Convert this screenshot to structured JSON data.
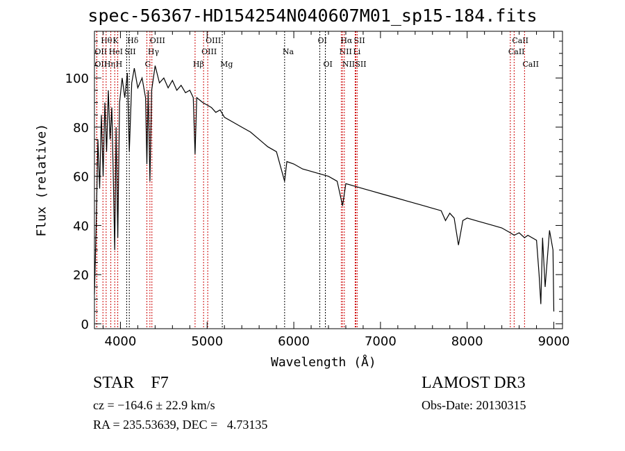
{
  "chart_data": {
    "type": "line",
    "title": "spec-56367-HD154254N040607M01_sp15-184.fits",
    "xlabel": "Wavelength (Å)",
    "ylabel": "Flux (relative)",
    "xlim": [
      3700,
      9100
    ],
    "ylim": [
      -2,
      119
    ],
    "xticks": [
      4000,
      5000,
      6000,
      7000,
      8000,
      9000
    ],
    "yticks": [
      0,
      20,
      40,
      60,
      80,
      100
    ],
    "grid": false,
    "series": [
      {
        "name": "spectrum",
        "color": "#000000",
        "points": [
          [
            3700,
            12
          ],
          [
            3720,
            40
          ],
          [
            3740,
            75
          ],
          [
            3760,
            55
          ],
          [
            3780,
            85
          ],
          [
            3800,
            60
          ],
          [
            3820,
            90
          ],
          [
            3840,
            70
          ],
          [
            3860,
            95
          ],
          [
            3880,
            75
          ],
          [
            3900,
            88
          ],
          [
            3920,
            55
          ],
          [
            3934,
            30
          ],
          [
            3950,
            80
          ],
          [
            3969,
            35
          ],
          [
            3990,
            90
          ],
          [
            4020,
            100
          ],
          [
            4050,
            92
          ],
          [
            4080,
            102
          ],
          [
            4102,
            70
          ],
          [
            4130,
            98
          ],
          [
            4160,
            104
          ],
          [
            4200,
            96
          ],
          [
            4250,
            100
          ],
          [
            4290,
            92
          ],
          [
            4305,
            65
          ],
          [
            4320,
            95
          ],
          [
            4340,
            58
          ],
          [
            4360,
            95
          ],
          [
            4400,
            105
          ],
          [
            4450,
            98
          ],
          [
            4500,
            100
          ],
          [
            4550,
            96
          ],
          [
            4600,
            99
          ],
          [
            4650,
            95
          ],
          [
            4700,
            97
          ],
          [
            4750,
            94
          ],
          [
            4800,
            95
          ],
          [
            4840,
            92
          ],
          [
            4861,
            69
          ],
          [
            4880,
            92
          ],
          [
            4950,
            90
          ],
          [
            5000,
            89
          ],
          [
            5050,
            88
          ],
          [
            5100,
            86
          ],
          [
            5150,
            87
          ],
          [
            5200,
            84
          ],
          [
            5300,
            82
          ],
          [
            5400,
            80
          ],
          [
            5500,
            78
          ],
          [
            5600,
            75
          ],
          [
            5700,
            72
          ],
          [
            5800,
            70
          ],
          [
            5894,
            58
          ],
          [
            5920,
            66
          ],
          [
            6000,
            65
          ],
          [
            6100,
            63
          ],
          [
            6200,
            62
          ],
          [
            6300,
            61
          ],
          [
            6400,
            60
          ],
          [
            6500,
            58
          ],
          [
            6563,
            48
          ],
          [
            6600,
            57
          ],
          [
            6700,
            56
          ],
          [
            6800,
            55
          ],
          [
            6900,
            54
          ],
          [
            7000,
            53
          ],
          [
            7100,
            52
          ],
          [
            7200,
            51
          ],
          [
            7300,
            50
          ],
          [
            7400,
            49
          ],
          [
            7500,
            48
          ],
          [
            7600,
            47
          ],
          [
            7700,
            46
          ],
          [
            7750,
            42
          ],
          [
            7800,
            45
          ],
          [
            7850,
            43
          ],
          [
            7900,
            32
          ],
          [
            7950,
            42
          ],
          [
            8000,
            43
          ],
          [
            8100,
            42
          ],
          [
            8200,
            41
          ],
          [
            8300,
            40
          ],
          [
            8400,
            39
          ],
          [
            8498,
            37
          ],
          [
            8542,
            36
          ],
          [
            8600,
            37
          ],
          [
            8662,
            35
          ],
          [
            8700,
            36
          ],
          [
            8800,
            34
          ],
          [
            8830,
            20
          ],
          [
            8850,
            8
          ],
          [
            8870,
            35
          ],
          [
            8900,
            15
          ],
          [
            8950,
            38
          ],
          [
            8990,
            30
          ],
          [
            9000,
            5
          ]
        ]
      }
    ],
    "line_markers": [
      {
        "label": "OII",
        "wavelength": 3727,
        "row": 2,
        "color": "#cc0000"
      },
      {
        "label": "Hθ",
        "wavelength": 3798,
        "row": 0,
        "color": "#cc0000"
      },
      {
        "label": "OII",
        "wavelength": 3727,
        "row": 1,
        "color": "#cc0000"
      },
      {
        "label": "Hη",
        "wavelength": 3835,
        "row": 2,
        "color": "#cc0000"
      },
      {
        "label": "HeI",
        "wavelength": 3889,
        "row": 1,
        "color": "#cc0000"
      },
      {
        "label": "K",
        "wavelength": 3934,
        "row": 0,
        "color": "#cc0000"
      },
      {
        "label": "H",
        "wavelength": 3969,
        "row": 2,
        "color": "#cc0000"
      },
      {
        "label": "SII",
        "wavelength": 4072,
        "row": 1,
        "color": "#000000"
      },
      {
        "label": "Hδ",
        "wavelength": 4102,
        "row": 0,
        "color": "#000000"
      },
      {
        "label": "G",
        "wavelength": 4305,
        "row": 2,
        "color": "#cc0000"
      },
      {
        "label": "Hγ",
        "wavelength": 4340,
        "row": 1,
        "color": "#cc0000"
      },
      {
        "label": "OIII",
        "wavelength": 4363,
        "row": 0,
        "color": "#cc0000"
      },
      {
        "label": "Hβ",
        "wavelength": 4861,
        "row": 2,
        "color": "#cc0000"
      },
      {
        "label": "OIII",
        "wavelength": 4959,
        "row": 1,
        "color": "#cc0000"
      },
      {
        "label": "OIII",
        "wavelength": 5007,
        "row": 0,
        "color": "#cc0000"
      },
      {
        "label": "Mg",
        "wavelength": 5175,
        "row": 2,
        "color": "#000000"
      },
      {
        "label": "Na",
        "wavelength": 5894,
        "row": 1,
        "color": "#000000"
      },
      {
        "label": "OI",
        "wavelength": 6300,
        "row": 0,
        "color": "#000000"
      },
      {
        "label": "OI",
        "wavelength": 6364,
        "row": 2,
        "color": "#000000"
      },
      {
        "label": "NII",
        "wavelength": 6548,
        "row": 1,
        "color": "#cc0000"
      },
      {
        "label": "Hα",
        "wavelength": 6563,
        "row": 0,
        "color": "#cc0000"
      },
      {
        "label": "NII",
        "wavelength": 6583,
        "row": 2,
        "color": "#cc0000"
      },
      {
        "label": "Li",
        "wavelength": 6708,
        "row": 1,
        "color": "#cc0000"
      },
      {
        "label": "SII",
        "wavelength": 6716,
        "row": 0,
        "color": "#cc0000"
      },
      {
        "label": "SII",
        "wavelength": 6731,
        "row": 2,
        "color": "#cc0000"
      },
      {
        "label": "CaII",
        "wavelength": 8498,
        "row": 1,
        "color": "#cc0000"
      },
      {
        "label": "CaII",
        "wavelength": 8542,
        "row": 0,
        "color": "#cc0000"
      },
      {
        "label": "CaII",
        "wavelength": 8662,
        "row": 2,
        "color": "#cc0000"
      }
    ]
  },
  "info": {
    "object": "STAR    F7",
    "survey": "LAMOST DR3",
    "cz": "cz = −164.6 ± 22.9 km/s",
    "obs_date": "Obs-Date: 20130315",
    "coords": "RA = 235.53639, DEC =   4.73135"
  }
}
